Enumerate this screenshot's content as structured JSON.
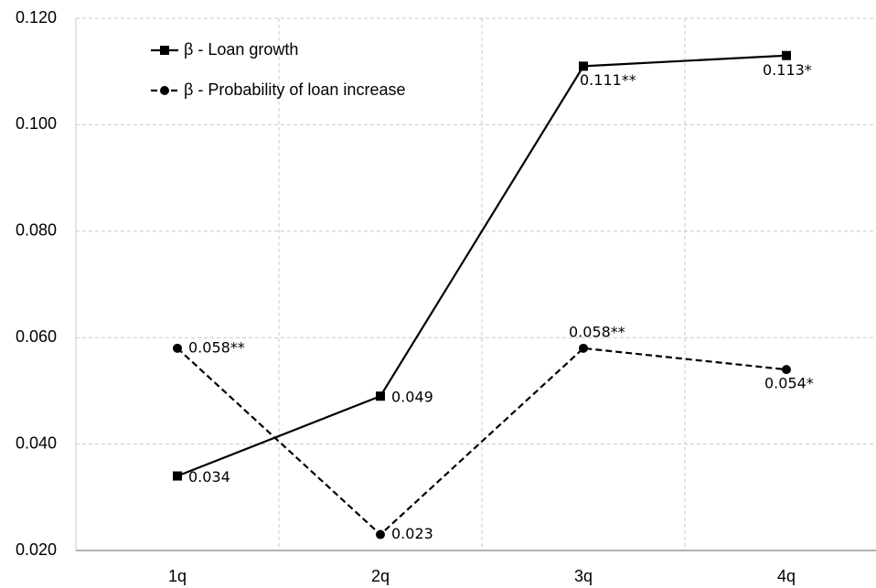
{
  "chart_data": {
    "type": "line",
    "categories": [
      "1q",
      "2q",
      "3q",
      "4q"
    ],
    "series": [
      {
        "name": "β - Loan growth",
        "color": "#000000",
        "line_style": "solid",
        "marker": "square",
        "values": [
          0.034,
          0.049,
          0.111,
          0.113
        ],
        "value_labels": [
          "0.034",
          "0.049",
          "0.111**",
          "0.113*"
        ]
      },
      {
        "name": "β - Probability of loan increase",
        "color": "#000000",
        "line_style": "dashed",
        "marker": "circle",
        "values": [
          0.058,
          0.023,
          0.058,
          0.054
        ],
        "value_labels": [
          "0.058**",
          "0.023",
          "0.058**",
          "0.054*"
        ]
      }
    ],
    "ylim": [
      0.02,
      0.12
    ],
    "yticks": [
      {
        "value": 0.02,
        "label": "0.020"
      },
      {
        "value": 0.04,
        "label": "0.040"
      },
      {
        "value": 0.06,
        "label": "0.060"
      },
      {
        "value": 0.08,
        "label": "0.080"
      },
      {
        "value": 0.1,
        "label": "0.100"
      },
      {
        "value": 0.12,
        "label": "0.120"
      }
    ],
    "grid": true,
    "legend": "upper left"
  }
}
